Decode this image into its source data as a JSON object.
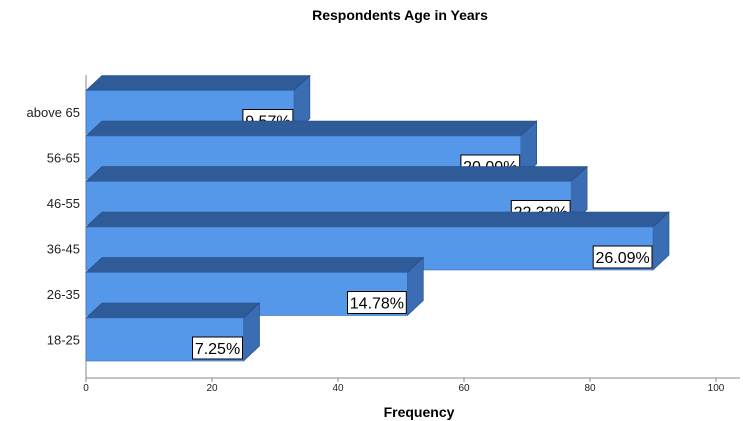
{
  "chart_data": {
    "type": "bar",
    "orientation": "horizontal",
    "style": "3d",
    "title": "Respondents Age in Years",
    "xlabel": "Frequency",
    "ylabel": "",
    "xlim": [
      0,
      100
    ],
    "ticks": [
      "0",
      "20",
      "40",
      "60",
      "80",
      "100"
    ],
    "categories": [
      "18-25",
      "26-35",
      "36-45",
      "46-55",
      "56-65",
      "above 65"
    ],
    "values": [
      25,
      51,
      90,
      77,
      69,
      33
    ],
    "data_labels": [
      "7.25%",
      "14.78%",
      "26.09%",
      "22.32%",
      "20.00%",
      "9.57%"
    ],
    "grid": false,
    "legend": "none",
    "colors": {
      "bar_front": "#5597e8",
      "bar_top": "#2f5c99",
      "bar_side": "#3a6db3",
      "axis": "#888888"
    }
  }
}
